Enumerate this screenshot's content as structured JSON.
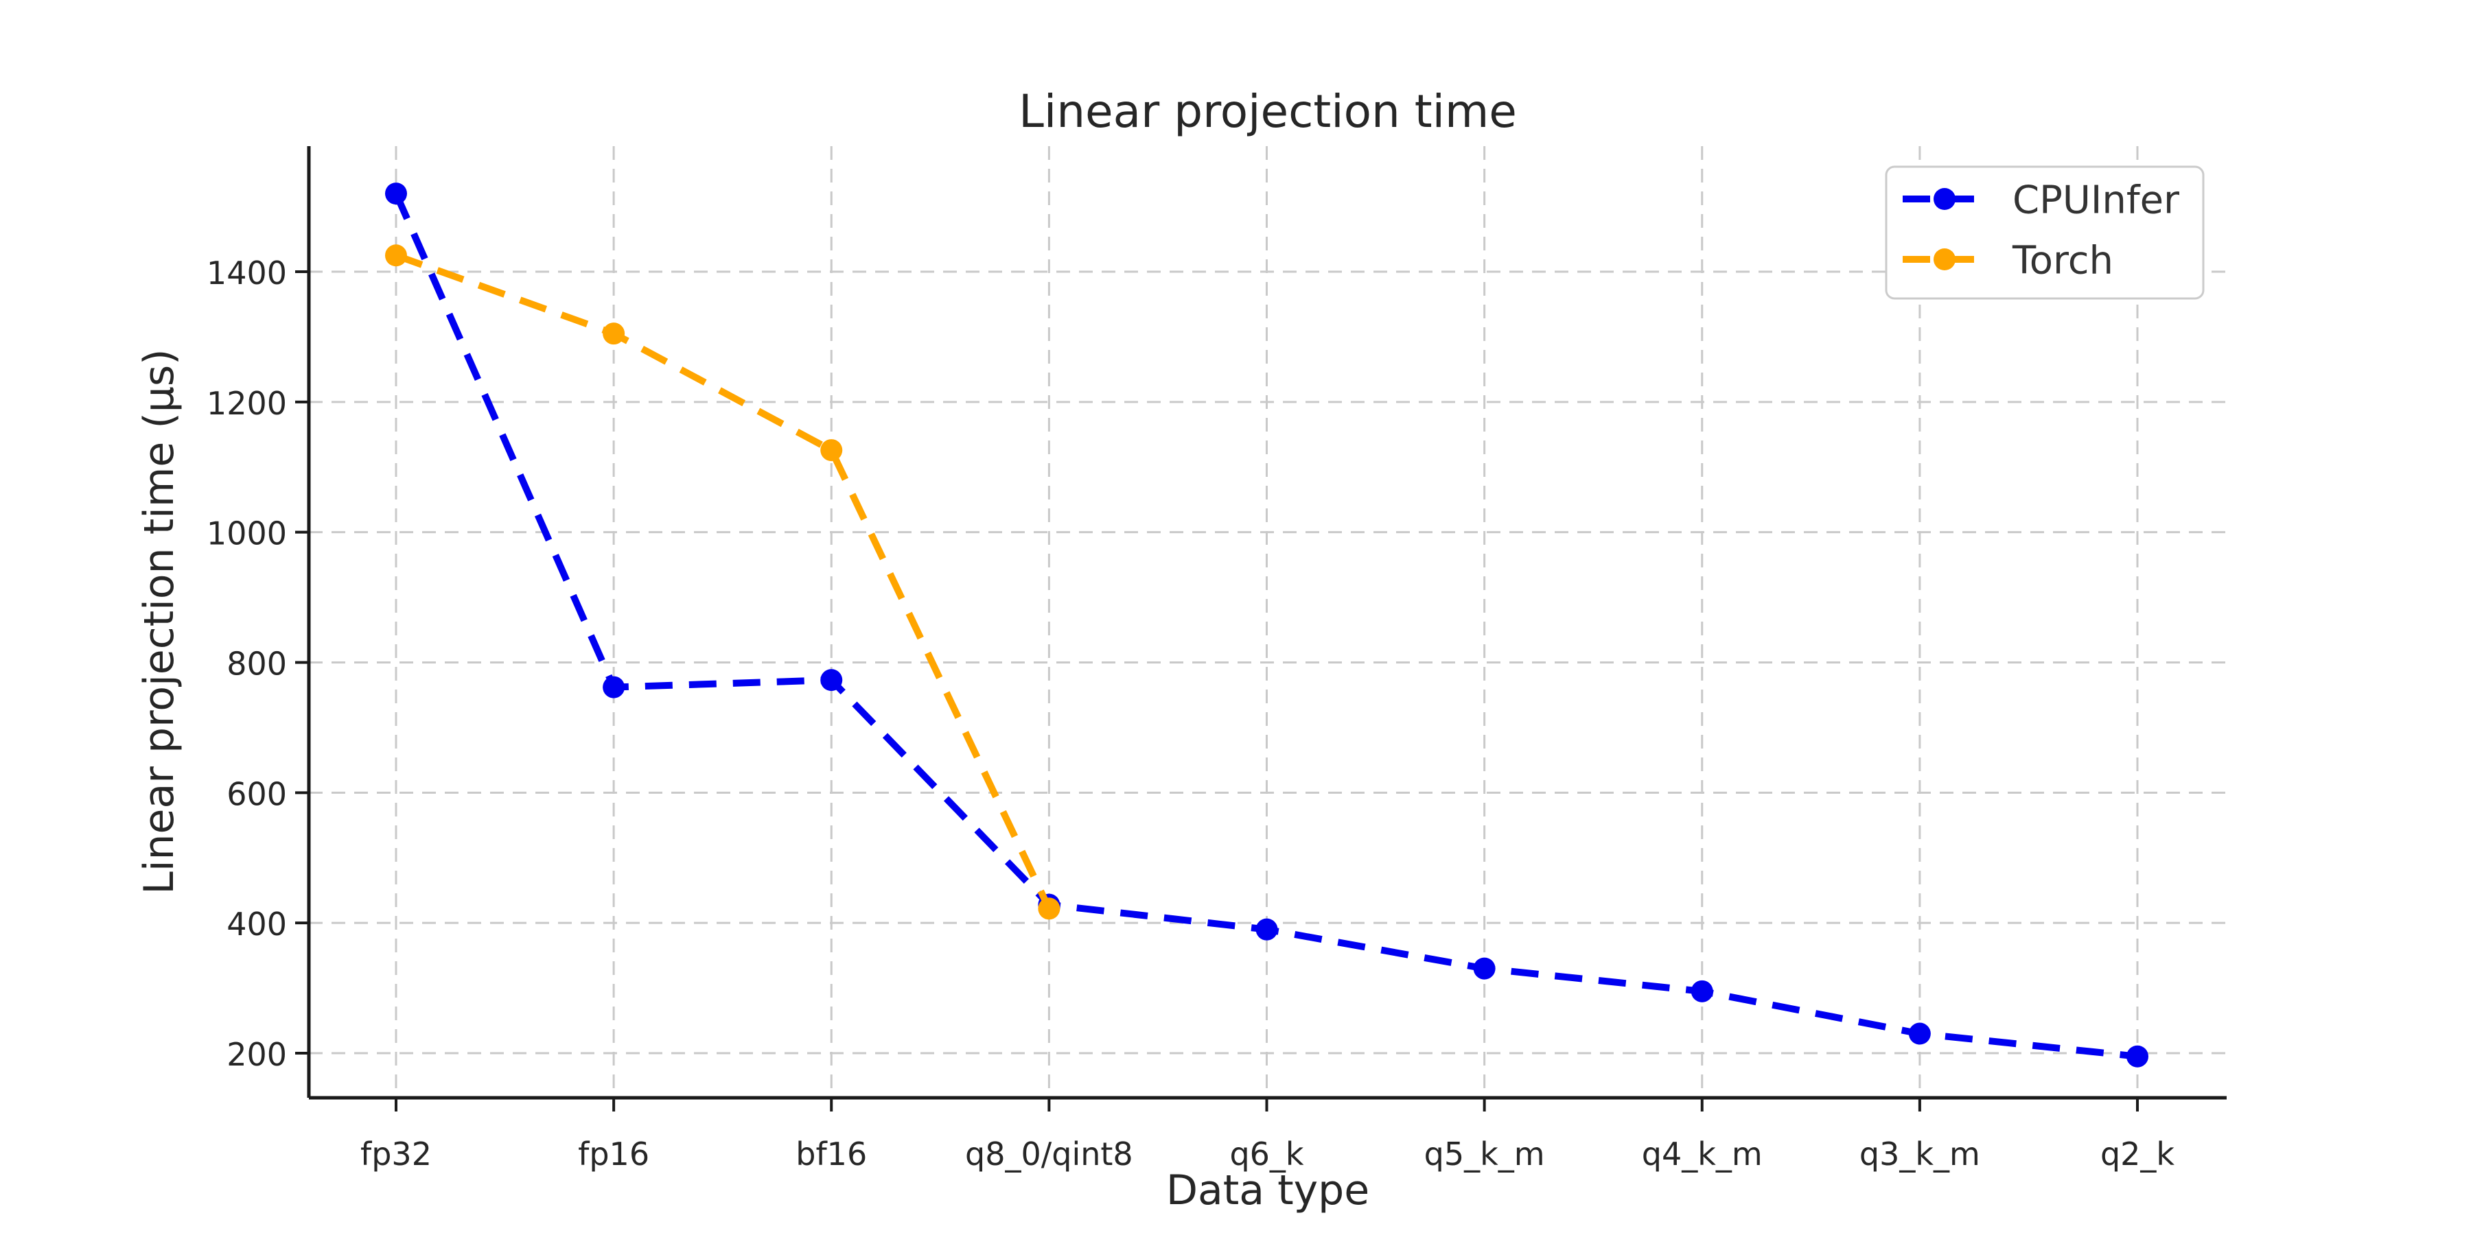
{
  "chart_data": {
    "type": "line",
    "title": "Linear projection time",
    "xlabel": "Data type",
    "ylabel": "Linear projection time (μs)",
    "categories": [
      "fp32",
      "fp16",
      "bf16",
      "q8_0/qint8",
      "q6_k",
      "q5_k_m",
      "q4_k_m",
      "q3_k_m",
      "q2_k"
    ],
    "y_ticks": [
      200,
      400,
      600,
      800,
      1000,
      1200,
      1400
    ],
    "ylim": [
      130,
      1595
    ],
    "grid": true,
    "grid_style": "dashed",
    "line_style": "dashed",
    "marker": "o",
    "legend_position": "upper right",
    "series": [
      {
        "name": "CPUInfer",
        "color": "#0000f0",
        "values": [
          1520,
          762,
          773,
          428,
          390,
          330,
          295,
          230,
          195
        ]
      },
      {
        "name": "Torch",
        "color": "#ffa500",
        "values": [
          1425,
          1305,
          1126,
          422,
          null,
          null,
          null,
          null,
          null
        ]
      }
    ]
  },
  "colors": {
    "background": "#ffffff",
    "grid": "#c9c9c9",
    "spine": "#1a1a1a",
    "text": "#262626",
    "legend_border": "#cbcbcb"
  }
}
